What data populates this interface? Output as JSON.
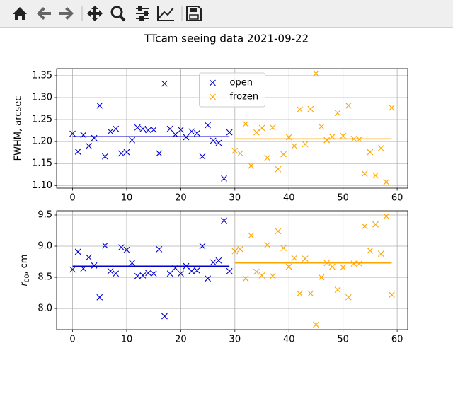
{
  "title": "TTcam seeing data 2021-09-22",
  "chart_data": [
    {
      "type": "scatter",
      "ylabel": "FWHM, arcsec",
      "xlim": [
        -2.95,
        61.95
      ],
      "ylim": [
        1.094,
        1.366
      ],
      "xticks": [
        0,
        10,
        20,
        30,
        40,
        50,
        60
      ],
      "yticks": [
        {
          "value": 1.1,
          "label": "1.10"
        },
        1.15,
        {
          "value": 1.2,
          "label": "1.20"
        },
        1.25,
        {
          "value": 1.3,
          "label": "1.30"
        },
        1.35
      ],
      "grid": true,
      "legend": "upper center",
      "series": [
        {
          "name": "open",
          "color": "#0000cc",
          "mean": 1.211,
          "mean_range": [
            0,
            29
          ],
          "x": [
            0,
            1,
            2,
            3,
            4,
            5,
            6,
            7,
            8,
            9,
            10,
            11,
            12,
            13,
            14,
            15,
            16,
            17,
            18,
            19,
            20,
            21,
            22,
            23,
            24,
            25,
            26,
            27,
            28,
            29
          ],
          "values": [
            1.218,
            1.177,
            1.215,
            1.19,
            1.208,
            1.282,
            1.166,
            1.223,
            1.229,
            1.173,
            1.176,
            1.203,
            1.232,
            1.229,
            1.226,
            1.227,
            1.173,
            1.332,
            1.229,
            1.216,
            1.227,
            1.21,
            1.223,
            1.219,
            1.166,
            1.237,
            1.202,
            1.197,
            1.116,
            1.221
          ]
        },
        {
          "name": "frozen",
          "color": "#ffa500",
          "mean": 1.206,
          "mean_range": [
            30,
            59
          ],
          "x": [
            30,
            31,
            32,
            33,
            34,
            35,
            36,
            37,
            38,
            39,
            40,
            41,
            42,
            43,
            44,
            45,
            46,
            47,
            48,
            49,
            50,
            51,
            52,
            53,
            54,
            55,
            56,
            57,
            58,
            59
          ],
          "values": [
            1.179,
            1.173,
            1.24,
            1.145,
            1.221,
            1.231,
            1.163,
            1.232,
            1.137,
            1.171,
            1.21,
            1.19,
            1.273,
            1.194,
            1.274,
            1.355,
            1.234,
            1.203,
            1.211,
            1.265,
            1.213,
            1.282,
            1.206,
            1.205,
            1.127,
            1.176,
            1.123,
            1.185,
            1.108,
            1.277
          ]
        }
      ]
    },
    {
      "type": "scatter",
      "ylabel": {
        "symbol": "r",
        "subscript": "00",
        "rest": ", cm"
      },
      "xlim": [
        -2.95,
        61.95
      ],
      "ylim": [
        7.66,
        9.568
      ],
      "xticks": [
        0,
        10,
        20,
        30,
        40,
        50,
        60
      ],
      "yticks": [
        {
          "value": 8,
          "label": "8.0"
        },
        8.5,
        {
          "value": 9,
          "label": "9.0"
        },
        9.5
      ],
      "grid": true,
      "series": [
        {
          "color": "#0000cc",
          "mean": 8.68,
          "mean_range": [
            0,
            29
          ],
          "x": [
            0,
            1,
            2,
            3,
            4,
            5,
            6,
            7,
            8,
            9,
            10,
            11,
            12,
            13,
            14,
            15,
            16,
            17,
            18,
            19,
            20,
            21,
            22,
            23,
            24,
            25,
            26,
            27,
            28,
            29
          ],
          "values": [
            8.625,
            8.91,
            8.64,
            8.82,
            8.69,
            8.18,
            9.01,
            8.6,
            8.56,
            8.98,
            8.94,
            8.73,
            8.52,
            8.53,
            8.57,
            8.56,
            8.95,
            7.875,
            8.56,
            8.65,
            8.56,
            8.68,
            8.6,
            8.61,
            9.0,
            8.48,
            8.74,
            8.77,
            9.41,
            8.6
          ]
        },
        {
          "color": "#ffa500",
          "mean": 8.73,
          "mean_range": [
            30,
            59
          ],
          "x": [
            30,
            31,
            32,
            33,
            34,
            35,
            36,
            37,
            38,
            39,
            40,
            41,
            42,
            43,
            44,
            45,
            46,
            47,
            48,
            49,
            50,
            51,
            52,
            53,
            54,
            55,
            56,
            57,
            58,
            59
          ],
          "values": [
            8.92,
            8.95,
            8.48,
            9.17,
            8.59,
            8.53,
            9.02,
            8.52,
            9.24,
            8.97,
            8.67,
            8.81,
            8.24,
            8.8,
            8.24,
            7.74,
            8.5,
            8.73,
            8.67,
            8.3,
            8.66,
            8.18,
            8.72,
            8.72,
            9.32,
            8.93,
            9.35,
            8.88,
            9.48,
            8.22
          ]
        }
      ]
    }
  ]
}
